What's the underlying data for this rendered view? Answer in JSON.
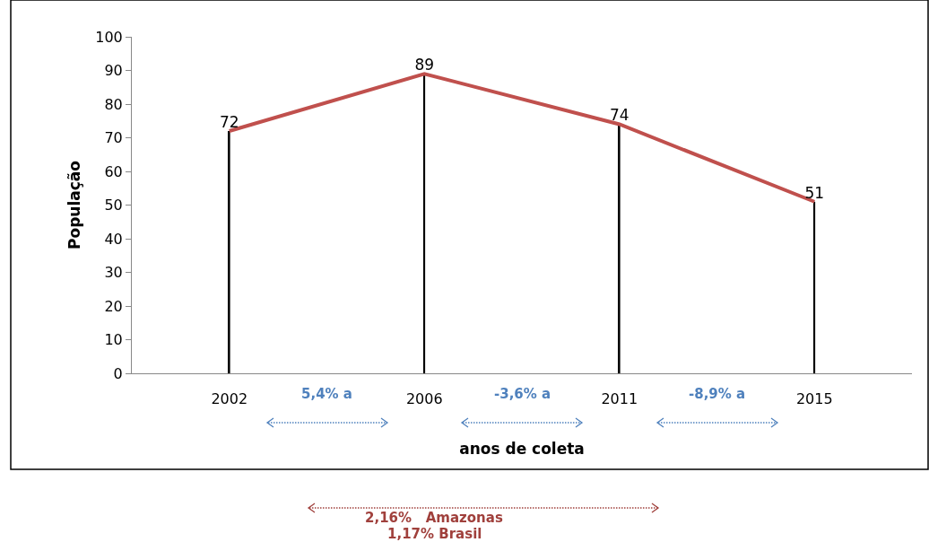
{
  "chart_data": {
    "type": "line",
    "xlabel": "anos de coleta",
    "ylabel": "População",
    "categories": [
      "2002",
      "2006",
      "2011",
      "2015"
    ],
    "series": [
      {
        "type": "bar",
        "color": "#000000",
        "values": [
          72,
          89,
          74,
          51
        ]
      },
      {
        "color": "#c0504d",
        "values": [
          72,
          89,
          74,
          51
        ],
        "value_labels": [
          "72",
          "89",
          "74",
          "51"
        ]
      }
    ],
    "ylim": [
      0,
      100
    ],
    "yticks": [
      0,
      10,
      20,
      30,
      40,
      50,
      60,
      70,
      80,
      90,
      100
    ],
    "grid": false,
    "marker": "none",
    "line_style": "solid",
    "annotations": [
      "5,4% a",
      "-3,6% a",
      "-8,9% a",
      "2,16%   Amazonas",
      "1,17% Brasil"
    ]
  }
}
